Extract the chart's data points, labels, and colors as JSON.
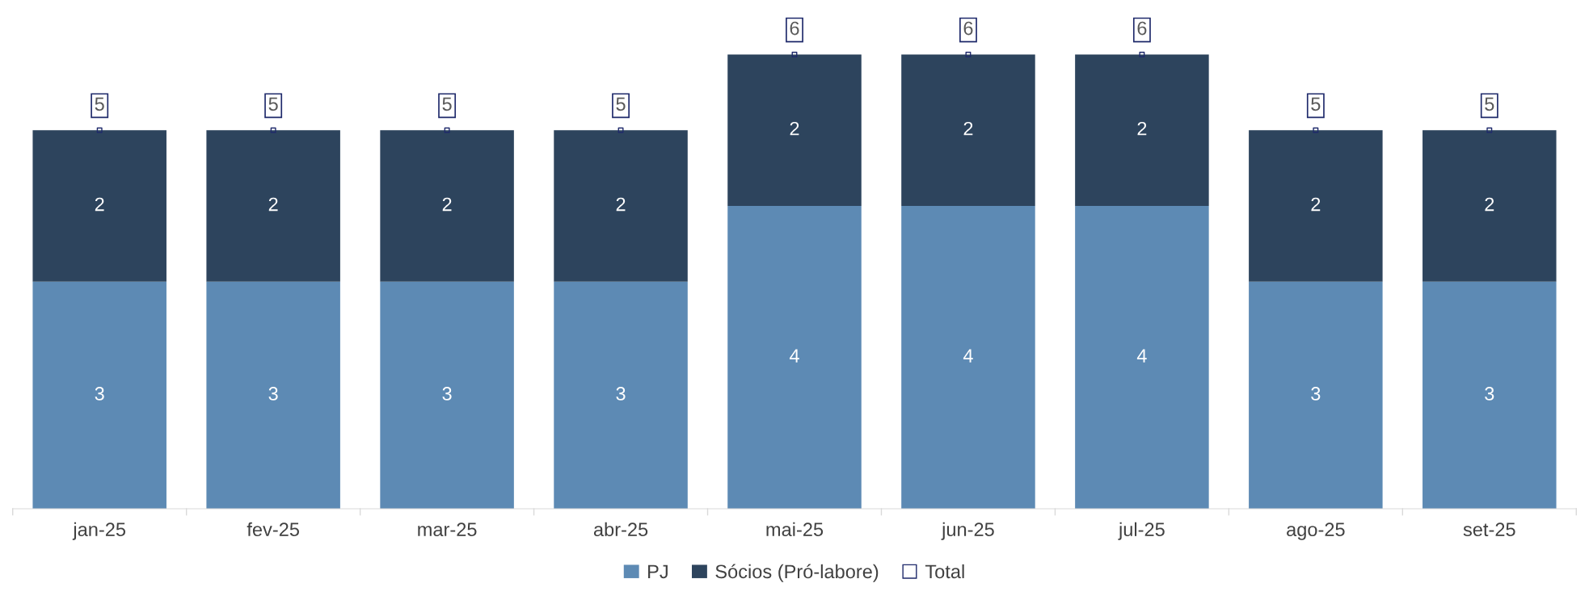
{
  "chart_data": {
    "type": "bar",
    "stacked": true,
    "data_labels": true,
    "legend": "bottom",
    "grid": false,
    "categories": [
      "jan-25",
      "fev-25",
      "mar-25",
      "abr-25",
      "mai-25",
      "jun-25",
      "jul-25",
      "ago-25",
      "set-25"
    ],
    "series": [
      {
        "name": "PJ",
        "color": "#5d8ab4",
        "values": [
          3,
          3,
          3,
          3,
          4,
          4,
          4,
          3,
          3
        ]
      },
      {
        "name": "Sócios (Pró-labore)",
        "color": "#2d445d",
        "values": [
          2,
          2,
          2,
          2,
          2,
          2,
          2,
          2,
          2
        ]
      },
      {
        "name": "Total",
        "type": "scatter",
        "color": "#1f2a6b",
        "values": [
          5,
          5,
          5,
          5,
          6,
          6,
          6,
          5,
          5
        ]
      }
    ]
  }
}
